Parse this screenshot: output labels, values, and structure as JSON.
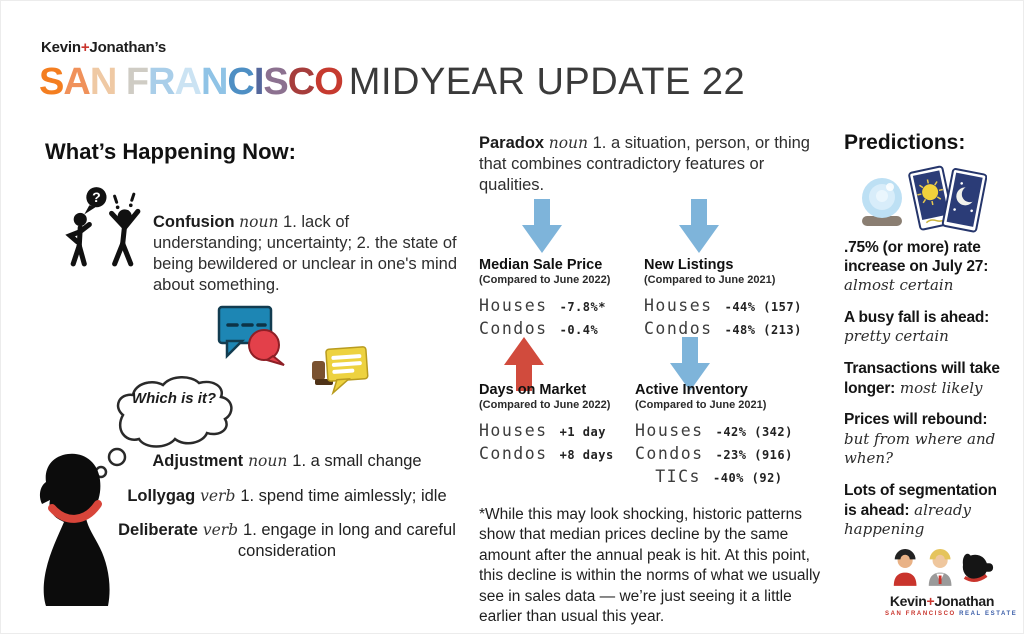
{
  "colors": {
    "accent_red": "#C9342C",
    "arrow_blue": "#7EB4DA",
    "arrow_red": "#D14B3D"
  },
  "header": {
    "brand_left": "Kevin",
    "brand_plus": "+",
    "brand_right": "Jonathan’s",
    "title_letters": [
      {
        "ch": "S",
        "color": "#F47E20"
      },
      {
        "ch": "A",
        "color": "#F0915A"
      },
      {
        "ch": "N",
        "color": "#EFC9A4"
      },
      {
        "ch": " ",
        "color": "#000000"
      },
      {
        "ch": "F",
        "color": "#CFCCC4"
      },
      {
        "ch": "R",
        "color": "#A9CEE9"
      },
      {
        "ch": "A",
        "color": "#CBE3F3"
      },
      {
        "ch": "N",
        "color": "#8FC3E6"
      },
      {
        "ch": "C",
        "color": "#4E8FC4"
      },
      {
        "ch": "I",
        "color": "#54679C"
      },
      {
        "ch": "S",
        "color": "#8C7190"
      },
      {
        "ch": "C",
        "color": "#A63D3C"
      },
      {
        "ch": "O",
        "color": "#C63A2F"
      }
    ],
    "title_rest": "MIDYEAR UPDATE 22"
  },
  "left": {
    "heading": "What’s Happening Now:",
    "confusion": {
      "term": "Confusion",
      "pos": "noun",
      "def": "1. lack of understanding; uncertainty; 2. the state of being bewildered or unclear in one's mind about something."
    },
    "thought_text": "Which is it?",
    "definitions": [
      {
        "term": "Adjustment",
        "pos": "noun",
        "def": "1. a small change"
      },
      {
        "term": "Lollygag",
        "pos": "verb",
        "def": "1. spend time aimlessly; idle"
      },
      {
        "term": "Deliberate",
        "pos": "verb",
        "def": "1. engage in long and careful consideration"
      }
    ]
  },
  "middle": {
    "paradox": {
      "term": "Paradox",
      "pos": "noun",
      "def": "1. a situation, person, or thing that combines contradictory features or qualities."
    },
    "blocks": [
      {
        "title": "Median Sale Price",
        "subtitle": "(Compared to June 2022)",
        "arrow": "down",
        "rows": [
          {
            "label": "Houses",
            "value": "-7.8%*"
          },
          {
            "label": "Condos",
            "value": "-0.4%"
          }
        ]
      },
      {
        "title": "New Listings",
        "subtitle": "(Compared to June 2021)",
        "arrow": "down",
        "rows": [
          {
            "label": "Houses",
            "value": "-44% (157)"
          },
          {
            "label": "Condos",
            "value": "-48% (213)"
          }
        ]
      },
      {
        "title": "Days on Market",
        "subtitle": "(Compared to June 2022)",
        "arrow": "up",
        "rows": [
          {
            "label": "Houses",
            "value": "+1 day"
          },
          {
            "label": "Condos",
            "value": "+8 days"
          }
        ]
      },
      {
        "title": "Active Inventory",
        "subtitle": "(Compared to June 2021)",
        "arrow": "down",
        "rows": [
          {
            "label": "Houses",
            "value": "-42% (342)"
          },
          {
            "label": "Condos",
            "value": "-23% (916)"
          },
          {
            "label": "TICs",
            "value": "-40% (92)"
          }
        ]
      }
    ],
    "footnote": "*While this may look shocking, historic patterns show that median prices decline by the same amount after the annual peak is hit. At this point, this decline is within the norms of what we usually see in sales data — we’re just seeing it a little earlier than usual this year."
  },
  "right": {
    "heading": "Predictions:",
    "predictions": [
      {
        "bold": ".75% (or more) rate increase on July 27:",
        "italic": "almost certain",
        "inline": false
      },
      {
        "bold": "A busy fall is ahead:",
        "italic": "pretty certain",
        "inline": false
      },
      {
        "bold": "Transactions will take longer:",
        "italic": "most likely",
        "inline": true
      },
      {
        "bold": "Prices will rebound:",
        "italic": "but from where and when?",
        "inline": false
      },
      {
        "bold": "Lots of segmentation is ahead:",
        "italic": "already happening",
        "inline": true
      }
    ],
    "logo": {
      "name_left": "Kevin",
      "name_plus": "+",
      "name_right": "Jonathan",
      "tagline_left": "SAN FRANCISCO",
      "tagline_right": "REAL ESTATE"
    }
  }
}
